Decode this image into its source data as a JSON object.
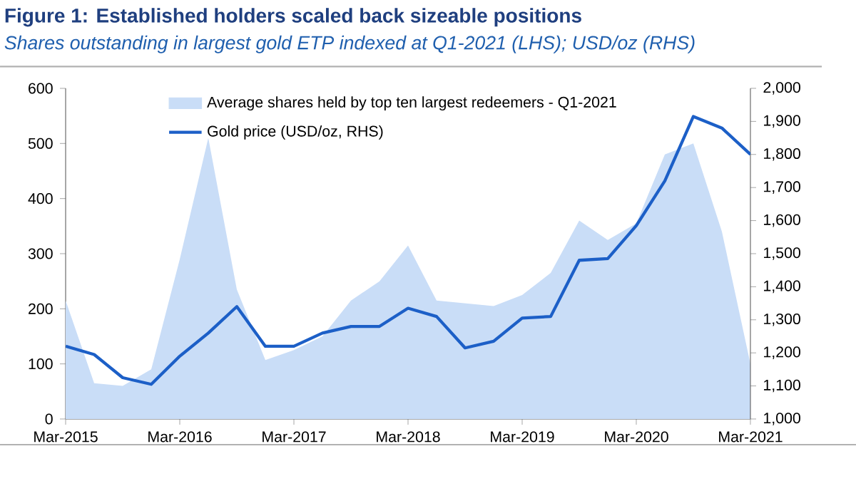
{
  "chart_data": {
    "type": "line",
    "title": "Figure 1: Established holders scaled back sizeable positions",
    "subtitle": "Shares outstanding in largest gold ETP indexed at Q1-2021 (LHS); USD/oz (RHS)",
    "categories": [
      "Mar-2015",
      null,
      null,
      null,
      "Mar-2016",
      null,
      null,
      null,
      "Mar-2017",
      null,
      null,
      null,
      "Mar-2018",
      null,
      null,
      null,
      "Mar-2019",
      null,
      null,
      null,
      "Mar-2020",
      null,
      null,
      null,
      "Mar-2021"
    ],
    "series": [
      {
        "name": "Average shares held by top ten largest redeemers - Q1-2021",
        "type": "area",
        "color": "#c9ddf7",
        "values": [
          215,
          65,
          60,
          90,
          290,
          510,
          235,
          107,
          125,
          150,
          215,
          250,
          315,
          215,
          210,
          205,
          225,
          265,
          360,
          325,
          355,
          480,
          500,
          340,
          100
        ]
      },
      {
        "name": "Gold price (USD/oz, RHS)",
        "axis": "y2",
        "color": "#1c5fc7",
        "values": [
          1220,
          1195,
          1125,
          1105,
          1190,
          1260,
          1340,
          1220,
          1220,
          1260,
          1280,
          1280,
          1335,
          1310,
          1215,
          1235,
          1305,
          1310,
          1480,
          1485,
          1585,
          1720,
          1915,
          1880,
          1800
        ]
      }
    ],
    "ylim": [
      0,
      600
    ],
    "yticks": [
      0,
      100,
      200,
      300,
      400,
      500,
      600
    ],
    "y2lim": [
      1000,
      2000
    ],
    "y2ticks": [
      {
        "value": 1000,
        "label": "1,000"
      },
      {
        "value": 1100,
        "label": "1,100"
      },
      {
        "value": 1200,
        "label": "1,200"
      },
      {
        "value": 1300,
        "label": "1,300"
      },
      {
        "value": 1400,
        "label": "1,400"
      },
      {
        "value": 1500,
        "label": "1,500"
      },
      {
        "value": 1600,
        "label": "1,600"
      },
      {
        "value": 1700,
        "label": "1,700"
      },
      {
        "value": 1800,
        "label": "1,800"
      },
      {
        "value": 1900,
        "label": "1,900"
      },
      {
        "value": 2000,
        "label": "2,000"
      }
    ],
    "legend": "top"
  }
}
